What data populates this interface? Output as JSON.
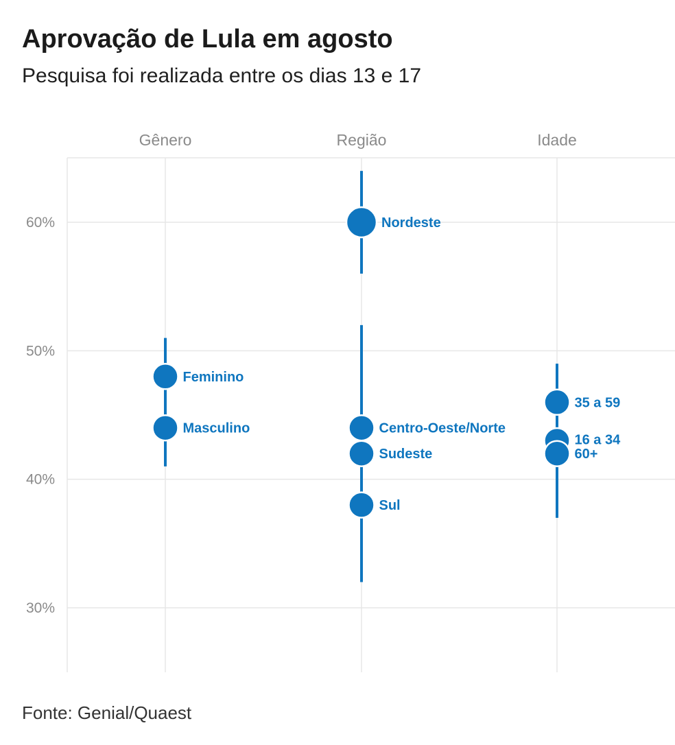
{
  "header": {
    "title": "Aprovação de Lula em agosto",
    "subtitle": "Pesquisa foi realizada entre os dias 13 e 17"
  },
  "footer": {
    "source": "Fonte: Genial/Quaest"
  },
  "colors": {
    "point": "#0f76bf",
    "grid": "#e7e7e7",
    "axis_text": "#8a8a8a"
  },
  "chart_data": {
    "type": "scatter",
    "title": "Aprovação de Lula em agosto",
    "subtitle": "Pesquisa foi realizada entre os dias 13 e 17",
    "categories": [
      "Gênero",
      "Região",
      "Idade"
    ],
    "y_ticks": [
      30,
      40,
      50,
      60
    ],
    "y_tick_labels": [
      "30%",
      "40%",
      "50%",
      "60%"
    ],
    "ylim": [
      25,
      65
    ],
    "grid": true,
    "points": [
      {
        "category": "Gênero",
        "label": "Feminino",
        "value": 48,
        "low": 45,
        "high": 51
      },
      {
        "category": "Gênero",
        "label": "Masculino",
        "value": 44,
        "low": 41,
        "high": 47
      },
      {
        "category": "Região",
        "label": "Nordeste",
        "value": 60,
        "low": 56,
        "high": 64
      },
      {
        "category": "Região",
        "label": "Centro-Oeste/Norte",
        "value": 44,
        "low": 36,
        "high": 52
      },
      {
        "category": "Região",
        "label": "Sudeste",
        "value": 42,
        "low": 39,
        "high": 45
      },
      {
        "category": "Região",
        "label": "Sul",
        "value": 38,
        "low": 32,
        "high": 44
      },
      {
        "category": "Idade",
        "label": "35 a 59",
        "value": 46,
        "low": 43,
        "high": 49
      },
      {
        "category": "Idade",
        "label": "16 a 34",
        "value": 43,
        "low": 39,
        "high": 47
      },
      {
        "category": "Idade",
        "label": "60+",
        "value": 42,
        "low": 37,
        "high": 47
      }
    ]
  }
}
